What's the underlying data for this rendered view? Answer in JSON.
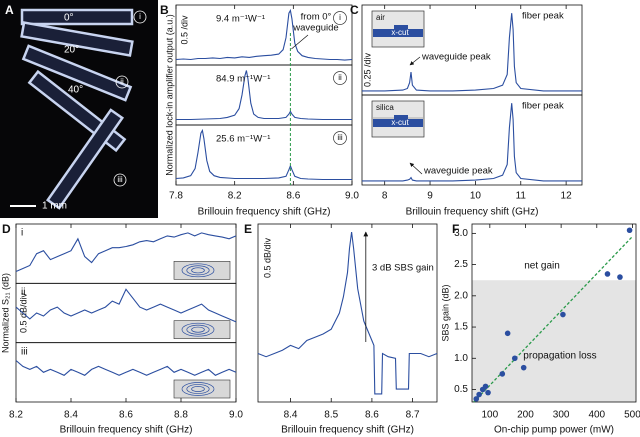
{
  "panel_a": {
    "label": "A",
    "angles": [
      "0°",
      "20°",
      "40°"
    ],
    "tags": [
      "i",
      "ii",
      "iii"
    ],
    "scale_bar": "1 mm"
  },
  "chart_data": [
    {
      "type": "line",
      "label": "B",
      "xlabel": "Brillouin frequency shift (GHz)",
      "ylabel": "Normalized lock-in amplifier output (a.u.)",
      "scale": "0.5 /div",
      "xlim": [
        7.8,
        9.0
      ],
      "xticks": [
        7.8,
        8.2,
        8.6,
        {
          "value": 9,
          "label": "9.0"
        }
      ],
      "color": "#2b4ea0",
      "marker_x": 8.58,
      "marker_color": "#2a9a4a",
      "notes": [
        "from 0°",
        "waveguide"
      ],
      "panels": [
        {
          "tag": "i",
          "notes": [
            "9.4 m⁻¹W⁻¹"
          ],
          "ylim": [
            0,
            1.1
          ],
          "x": [
            7.8,
            7.85,
            7.9,
            7.95,
            8.0,
            8.05,
            8.1,
            8.15,
            8.2,
            8.25,
            8.3,
            8.35,
            8.4,
            8.45,
            8.5,
            8.53,
            8.55,
            8.57,
            8.58,
            8.59,
            8.61,
            8.63,
            8.66,
            8.7,
            8.75,
            8.8,
            8.85,
            8.9,
            8.95,
            9.0
          ],
          "values": [
            0.1,
            0.11,
            0.1,
            0.12,
            0.12,
            0.13,
            0.12,
            0.14,
            0.13,
            0.15,
            0.14,
            0.16,
            0.17,
            0.18,
            0.2,
            0.28,
            0.5,
            0.95,
            1.0,
            0.85,
            0.4,
            0.25,
            0.17,
            0.14,
            0.12,
            0.11,
            0.1,
            0.1,
            0.09,
            0.1
          ]
        },
        {
          "tag": "ii",
          "notes": [
            "84.9 m⁻¹W⁻¹"
          ],
          "ylim": [
            0,
            1.1
          ],
          "x": [
            7.8,
            7.9,
            8.0,
            8.1,
            8.15,
            8.2,
            8.23,
            8.25,
            8.27,
            8.28,
            8.29,
            8.31,
            8.33,
            8.36,
            8.4,
            8.5,
            8.55,
            8.57,
            8.58,
            8.59,
            8.61,
            8.65,
            8.7,
            8.8,
            8.9,
            9.0
          ],
          "values": [
            0.1,
            0.1,
            0.11,
            0.12,
            0.14,
            0.18,
            0.3,
            0.55,
            0.9,
            1.0,
            0.85,
            0.4,
            0.2,
            0.14,
            0.12,
            0.12,
            0.14,
            0.2,
            0.25,
            0.2,
            0.14,
            0.12,
            0.11,
            0.1,
            0.1,
            0.1
          ]
        },
        {
          "tag": "iii",
          "notes": [
            "25.6 m⁻¹W⁻¹"
          ],
          "ylim": [
            0,
            1.1
          ],
          "x": [
            7.8,
            7.85,
            7.9,
            7.93,
            7.95,
            7.97,
            7.98,
            7.99,
            8.01,
            8.03,
            8.06,
            8.1,
            8.2,
            8.3,
            8.4,
            8.5,
            8.55,
            8.57,
            8.58,
            8.59,
            8.61,
            8.65,
            8.7,
            8.8,
            8.9,
            9.0
          ],
          "values": [
            0.12,
            0.13,
            0.17,
            0.3,
            0.6,
            0.95,
            1.0,
            0.85,
            0.45,
            0.25,
            0.17,
            0.14,
            0.12,
            0.12,
            0.12,
            0.13,
            0.16,
            0.28,
            0.35,
            0.28,
            0.16,
            0.12,
            0.11,
            0.1,
            0.1,
            0.1
          ]
        }
      ]
    },
    {
      "type": "line",
      "label": "C",
      "xlabel": "Brillouin frequency shift (GHz)",
      "scale": "0.25 /div",
      "xlim": [
        7.5,
        12.35
      ],
      "xticks": [
        8,
        9,
        10,
        11,
        12
      ],
      "color": "#2b4ea0",
      "panels": [
        {
          "inset": [
            "air",
            "x-cut"
          ],
          "notes": [
            "fiber peak",
            "waveguide peak"
          ],
          "ylim": [
            0,
            1.1
          ],
          "x": [
            7.5,
            8,
            8.4,
            8.5,
            8.55,
            8.58,
            8.61,
            8.7,
            9,
            9.5,
            10,
            10.4,
            10.6,
            10.7,
            10.75,
            10.8,
            10.83,
            10.86,
            10.9,
            11,
            11.5,
            12,
            12.35
          ],
          "values": [
            0.05,
            0.05,
            0.06,
            0.08,
            0.15,
            0.28,
            0.12,
            0.06,
            0.05,
            0.05,
            0.06,
            0.08,
            0.12,
            0.25,
            0.7,
            1.0,
            0.8,
            0.35,
            0.15,
            0.08,
            0.05,
            0.05,
            0.05
          ]
        },
        {
          "inset": [
            "silica",
            "x-cut"
          ],
          "notes": [
            "fiber peak",
            "waveguide peak"
          ],
          "ylim": [
            0,
            1.1
          ],
          "x": [
            7.5,
            8,
            8.4,
            8.5,
            8.55,
            8.58,
            8.61,
            8.7,
            9,
            9.5,
            10,
            10.4,
            10.6,
            10.7,
            10.75,
            10.8,
            10.83,
            10.86,
            10.9,
            11,
            11.5,
            12,
            12.35
          ],
          "values": [
            0.05,
            0.05,
            0.05,
            0.06,
            0.07,
            0.09,
            0.06,
            0.05,
            0.05,
            0.05,
            0.06,
            0.08,
            0.12,
            0.25,
            0.7,
            1.0,
            0.8,
            0.35,
            0.15,
            0.08,
            0.05,
            0.05,
            0.05
          ]
        }
      ]
    },
    {
      "type": "line",
      "label": "D",
      "xlabel": "Brillouin frequency shift (GHz)",
      "ylabel": "Normalized S₂₁ (dB)",
      "scale": "0.5 dB/div",
      "xlim": [
        8.2,
        9.0
      ],
      "xticks": [
        8.2,
        8.4,
        8.6,
        8.8,
        {
          "value": 9,
          "label": "9.0"
        }
      ],
      "color": "#2b4ea0",
      "panels": [
        {
          "tag": "i",
          "ylim": [
            0,
            1
          ],
          "x": [
            8.2,
            8.225,
            8.25,
            8.275,
            8.3,
            8.325,
            8.35,
            8.375,
            8.4,
            8.425,
            8.45,
            8.475,
            8.5,
            8.525,
            8.55,
            8.575,
            8.6,
            8.625,
            8.65,
            8.675,
            8.7,
            8.725,
            8.75,
            8.775,
            8.8,
            8.825,
            8.85,
            8.875,
            8.9,
            8.925,
            8.95,
            8.975,
            9.0
          ],
          "values": [
            0.2,
            0.25,
            0.3,
            0.5,
            0.55,
            0.4,
            0.45,
            0.5,
            0.55,
            0.75,
            0.45,
            0.35,
            0.5,
            0.55,
            0.6,
            0.6,
            0.62,
            0.65,
            0.7,
            0.72,
            0.7,
            0.75,
            0.8,
            0.78,
            0.82,
            0.85,
            0.8,
            0.85,
            0.82,
            0.8,
            0.78,
            0.75,
            0.8
          ]
        },
        {
          "tag": "ii",
          "ylim": [
            0,
            1
          ],
          "x": [
            8.2,
            8.225,
            8.25,
            8.275,
            8.3,
            8.325,
            8.35,
            8.375,
            8.4,
            8.425,
            8.45,
            8.475,
            8.5,
            8.525,
            8.55,
            8.575,
            8.6,
            8.625,
            8.65,
            8.675,
            8.7,
            8.725,
            8.75,
            8.775,
            8.8,
            8.825,
            8.85,
            8.875,
            8.9,
            8.925,
            8.95,
            8.975,
            9.0
          ],
          "values": [
            0.6,
            0.5,
            0.4,
            0.5,
            0.45,
            0.55,
            0.6,
            0.5,
            0.45,
            0.5,
            0.55,
            0.5,
            0.55,
            0.6,
            0.7,
            0.65,
            0.9,
            0.75,
            0.6,
            0.55,
            0.6,
            0.65,
            0.6,
            0.55,
            0.5,
            0.55,
            0.6,
            0.65,
            0.55,
            0.5,
            0.45,
            0.4,
            0.35
          ]
        },
        {
          "tag": "iii",
          "ylim": [
            0,
            1
          ],
          "x": [
            8.2,
            8.225,
            8.25,
            8.275,
            8.3,
            8.325,
            8.35,
            8.375,
            8.4,
            8.425,
            8.45,
            8.475,
            8.5,
            8.525,
            8.55,
            8.575,
            8.6,
            8.625,
            8.65,
            8.675,
            8.7,
            8.725,
            8.75,
            8.775,
            8.8,
            8.825,
            8.85,
            8.875,
            8.9,
            8.925,
            8.95,
            8.975,
            9.0
          ],
          "values": [
            0.7,
            0.6,
            0.55,
            0.6,
            0.5,
            0.55,
            0.5,
            0.45,
            0.55,
            0.5,
            0.45,
            0.55,
            0.6,
            0.55,
            0.5,
            0.45,
            0.5,
            0.55,
            0.5,
            0.45,
            0.5,
            0.55,
            0.6,
            0.5,
            0.55,
            0.5,
            0.45,
            0.5,
            0.55,
            0.45,
            0.5,
            0.55,
            0.5
          ]
        }
      ]
    },
    {
      "type": "line",
      "label": "E",
      "xlabel": "Brillouin frequency shift (GHz)",
      "scale": "0.5 dB/div",
      "xlim": [
        8.32,
        8.76
      ],
      "xticks": [
        8.4,
        8.5,
        8.6,
        8.7
      ],
      "color": "#2b4ea0",
      "panels": [
        {
          "notes": [
            "3 dB SBS gain"
          ],
          "ylim": [
            0,
            1.1
          ],
          "x": [
            8.32,
            8.34,
            8.36,
            8.38,
            8.4,
            8.42,
            8.44,
            8.46,
            8.48,
            8.5,
            8.52,
            8.53,
            8.54,
            8.545,
            8.55,
            8.555,
            8.565,
            8.58,
            8.6,
            8.605,
            8.607,
            8.624,
            8.626,
            8.64,
            8.658,
            8.66,
            8.69,
            8.692,
            8.72,
            8.74,
            8.76
          ],
          "values": [
            0.3,
            0.28,
            0.3,
            0.32,
            0.35,
            0.33,
            0.38,
            0.4,
            0.42,
            0.45,
            0.55,
            0.65,
            0.8,
            0.95,
            1.05,
            0.95,
            0.7,
            0.5,
            0.38,
            0.35,
            0.05,
            0.05,
            0.3,
            0.28,
            0.27,
            0.08,
            0.08,
            0.3,
            0.3,
            0.28,
            0.3
          ]
        }
      ]
    },
    {
      "type": "scatter",
      "label": "F",
      "xlabel": "On-chip pump power (mW)",
      "ylabel": "SBS gain (dB)",
      "color": "#2b4ea0",
      "xlim": [
        50,
        510
      ],
      "ylim": [
        0.3,
        3.15
      ],
      "xticks": [
        100,
        200,
        300,
        400,
        500
      ],
      "yticks": [
        0.5,
        {
          "value": 1,
          "label": "1.0"
        },
        1.5,
        {
          "value": 2,
          "label": "2.0"
        },
        2.5,
        {
          "value": 3,
          "label": "3.0"
        }
      ],
      "x": [
        62,
        70,
        80,
        88,
        95,
        135,
        150,
        170,
        195,
        305,
        430,
        465,
        492
      ],
      "values": [
        0.35,
        0.42,
        0.5,
        0.55,
        0.45,
        0.75,
        1.4,
        1.0,
        0.85,
        1.7,
        2.35,
        2.3,
        3.05
      ],
      "fit": {
        "x": [
          55,
          500
        ],
        "values": [
          0.3,
          2.95
        ],
        "color": "#2a9a4a"
      },
      "threshold": 2.25,
      "notes": [
        "net gain",
        "propagation loss"
      ]
    }
  ]
}
